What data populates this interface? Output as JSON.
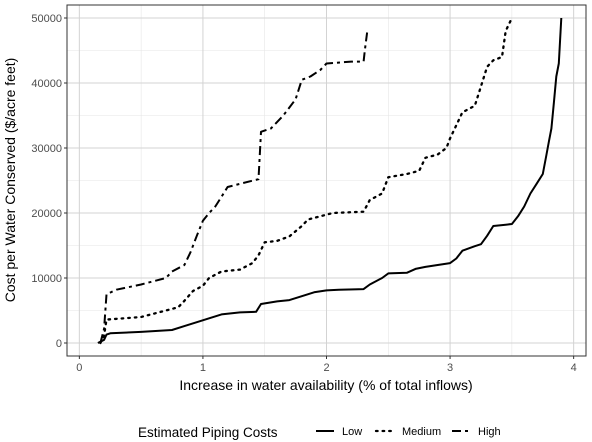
{
  "chart_data": {
    "type": "line",
    "xlabel": "Increase in water availability (% of total inflows)",
    "ylabel": "Cost per Water Conserved ($/acre feet)",
    "xlim": [
      -0.1,
      4.1
    ],
    "ylim": [
      -2000,
      52000
    ],
    "xticks": [
      0,
      1,
      2,
      3,
      4
    ],
    "yticks": [
      0,
      10000,
      20000,
      30000,
      40000,
      50000
    ],
    "grid": true,
    "legend": {
      "title": "Estimated Piping Costs",
      "position": "bottom"
    },
    "series": [
      {
        "name": "Low",
        "style": "solid",
        "points": [
          [
            0.15,
            0
          ],
          [
            0.2,
            500
          ],
          [
            0.22,
            1300
          ],
          [
            0.25,
            1500
          ],
          [
            0.5,
            1700
          ],
          [
            0.75,
            2000
          ],
          [
            0.85,
            2600
          ],
          [
            0.95,
            3200
          ],
          [
            1.05,
            3800
          ],
          [
            1.15,
            4400
          ],
          [
            1.3,
            4700
          ],
          [
            1.43,
            4800
          ],
          [
            1.47,
            6000
          ],
          [
            1.6,
            6400
          ],
          [
            1.7,
            6600
          ],
          [
            1.8,
            7200
          ],
          [
            1.9,
            7800
          ],
          [
            2.0,
            8100
          ],
          [
            2.1,
            8200
          ],
          [
            2.3,
            8300
          ],
          [
            2.35,
            9000
          ],
          [
            2.45,
            10000
          ],
          [
            2.5,
            10700
          ],
          [
            2.65,
            10800
          ],
          [
            2.72,
            11400
          ],
          [
            2.8,
            11700
          ],
          [
            2.9,
            12000
          ],
          [
            3.0,
            12300
          ],
          [
            3.05,
            13000
          ],
          [
            3.1,
            14200
          ],
          [
            3.2,
            14900
          ],
          [
            3.25,
            15200
          ],
          [
            3.3,
            16500
          ],
          [
            3.35,
            18000
          ],
          [
            3.45,
            18200
          ],
          [
            3.5,
            18300
          ],
          [
            3.55,
            19500
          ],
          [
            3.6,
            21000
          ],
          [
            3.65,
            23000
          ],
          [
            3.7,
            24500
          ],
          [
            3.75,
            26000
          ],
          [
            3.78,
            29000
          ],
          [
            3.8,
            31000
          ],
          [
            3.82,
            33000
          ],
          [
            3.84,
            37000
          ],
          [
            3.86,
            41000
          ],
          [
            3.88,
            43000
          ],
          [
            3.9,
            50000
          ]
        ]
      },
      {
        "name": "Medium",
        "style": "dotted",
        "points": [
          [
            0.17,
            0
          ],
          [
            0.2,
            1200
          ],
          [
            0.22,
            3600
          ],
          [
            0.5,
            4000
          ],
          [
            0.7,
            5000
          ],
          [
            0.8,
            5500
          ],
          [
            0.85,
            6500
          ],
          [
            0.92,
            8000
          ],
          [
            1.0,
            8800
          ],
          [
            1.05,
            10000
          ],
          [
            1.15,
            11000
          ],
          [
            1.3,
            11300
          ],
          [
            1.4,
            12300
          ],
          [
            1.45,
            13500
          ],
          [
            1.5,
            15500
          ],
          [
            1.6,
            15700
          ],
          [
            1.7,
            16400
          ],
          [
            1.8,
            18000
          ],
          [
            1.85,
            19000
          ],
          [
            1.95,
            19500
          ],
          [
            2.05,
            20000
          ],
          [
            2.3,
            20200
          ],
          [
            2.35,
            22000
          ],
          [
            2.45,
            23000
          ],
          [
            2.5,
            25500
          ],
          [
            2.65,
            26000
          ],
          [
            2.75,
            26500
          ],
          [
            2.8,
            28500
          ],
          [
            2.9,
            29000
          ],
          [
            2.97,
            30000
          ],
          [
            3.0,
            31500
          ],
          [
            3.05,
            33500
          ],
          [
            3.1,
            35500
          ],
          [
            3.2,
            36500
          ],
          [
            3.25,
            39500
          ],
          [
            3.3,
            42500
          ],
          [
            3.35,
            43500
          ],
          [
            3.42,
            44000
          ],
          [
            3.45,
            48000
          ],
          [
            3.5,
            50000
          ]
        ]
      },
      {
        "name": "High",
        "style": "dashed",
        "points": [
          [
            0.17,
            0
          ],
          [
            0.2,
            2200
          ],
          [
            0.22,
            7500
          ],
          [
            0.3,
            8200
          ],
          [
            0.5,
            9000
          ],
          [
            0.7,
            10000
          ],
          [
            0.75,
            11000
          ],
          [
            0.85,
            12000
          ],
          [
            0.9,
            14000
          ],
          [
            0.95,
            16500
          ],
          [
            1.0,
            18800
          ],
          [
            1.05,
            20000
          ],
          [
            1.1,
            21000
          ],
          [
            1.15,
            22500
          ],
          [
            1.2,
            24000
          ],
          [
            1.3,
            24500
          ],
          [
            1.45,
            25200
          ],
          [
            1.47,
            32500
          ],
          [
            1.55,
            33000
          ],
          [
            1.65,
            35000
          ],
          [
            1.75,
            37500
          ],
          [
            1.8,
            40500
          ],
          [
            1.87,
            41000
          ],
          [
            1.95,
            42000
          ],
          [
            2.0,
            43000
          ],
          [
            2.2,
            43300
          ],
          [
            2.3,
            43300
          ],
          [
            2.31,
            45000
          ],
          [
            2.33,
            48000
          ]
        ]
      }
    ]
  }
}
